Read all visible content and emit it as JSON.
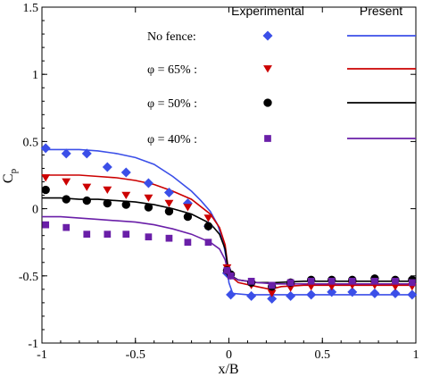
{
  "chart_data": {
    "type": "line",
    "title": "",
    "xlabel": "x/B",
    "ylabel": "C_p",
    "ylabel_main": "C",
    "ylabel_sub": "p",
    "xlim": [
      -1,
      1
    ],
    "ylim": [
      -1,
      1.5
    ],
    "x_ticks": [
      -1,
      -0.5,
      0,
      0.5,
      1
    ],
    "x_tick_labels": [
      "-1",
      "-0.5",
      "0",
      "0.5",
      "1"
    ],
    "y_ticks": [
      -1,
      -0.5,
      0,
      0.5,
      1,
      1.5
    ],
    "y_tick_labels": [
      "-1",
      "-0.5",
      "0",
      "0.5",
      "1",
      "1.5"
    ],
    "grid": false,
    "legend_position": "top-right",
    "legend_headers": {
      "experimental": "Experimental",
      "present": "Present"
    },
    "series": [
      {
        "name": "No fence:",
        "color": "#3b4fe8",
        "marker": "diamond",
        "experimental": {
          "x": [
            -0.98,
            -0.87,
            -0.76,
            -0.65,
            -0.55,
            -0.43,
            -0.32,
            -0.22,
            -0.11,
            -0.01,
            0.01,
            0.12,
            0.23,
            0.33,
            0.44,
            0.55,
            0.66,
            0.78,
            0.89,
            0.98
          ],
          "y": [
            0.45,
            0.41,
            0.41,
            0.31,
            0.27,
            0.19,
            0.12,
            0.04,
            -0.13,
            -0.48,
            -0.64,
            -0.65,
            -0.67,
            -0.65,
            -0.64,
            -0.62,
            -0.62,
            -0.63,
            -0.63,
            -0.64
          ]
        },
        "model": {
          "x": [
            -1.0,
            -0.9,
            -0.8,
            -0.7,
            -0.6,
            -0.5,
            -0.4,
            -0.3,
            -0.2,
            -0.15,
            -0.1,
            -0.06,
            -0.03,
            -0.01,
            0.0,
            0.02,
            0.1,
            0.3,
            0.5,
            0.7,
            1.0
          ],
          "y": [
            0.44,
            0.44,
            0.44,
            0.43,
            0.41,
            0.38,
            0.33,
            0.24,
            0.13,
            0.06,
            -0.02,
            -0.12,
            -0.25,
            -0.4,
            -0.55,
            -0.63,
            -0.64,
            -0.64,
            -0.64,
            -0.64,
            -0.64
          ]
        }
      },
      {
        "name": "φ = 65% :",
        "color": "#cc0000",
        "marker": "triangle-down",
        "experimental": {
          "x": [
            -0.98,
            -0.87,
            -0.76,
            -0.65,
            -0.55,
            -0.43,
            -0.32,
            -0.22,
            -0.11,
            -0.01,
            0.01,
            0.12,
            0.23,
            0.33,
            0.44,
            0.55,
            0.66,
            0.78,
            0.89,
            0.98
          ],
          "y": [
            0.23,
            0.2,
            0.16,
            0.14,
            0.1,
            0.08,
            0.04,
            0.01,
            -0.07,
            -0.44,
            -0.5,
            -0.57,
            -0.63,
            -0.59,
            -0.58,
            -0.58,
            -0.57,
            -0.57,
            -0.58,
            -0.58
          ]
        },
        "model": {
          "x": [
            -1.0,
            -0.9,
            -0.8,
            -0.7,
            -0.6,
            -0.5,
            -0.4,
            -0.3,
            -0.2,
            -0.1,
            -0.05,
            -0.02,
            0.0,
            0.05,
            0.15,
            0.22,
            0.28,
            0.4,
            0.6,
            0.8,
            1.0
          ],
          "y": [
            0.25,
            0.25,
            0.25,
            0.24,
            0.23,
            0.21,
            0.18,
            0.13,
            0.07,
            -0.04,
            -0.14,
            -0.27,
            -0.49,
            -0.55,
            -0.58,
            -0.6,
            -0.58,
            -0.57,
            -0.57,
            -0.57,
            -0.57
          ]
        }
      },
      {
        "name": "φ = 50% :",
        "color": "#000000",
        "marker": "circle",
        "experimental": {
          "x": [
            -0.98,
            -0.87,
            -0.76,
            -0.65,
            -0.55,
            -0.43,
            -0.32,
            -0.22,
            -0.11,
            -0.01,
            0.01,
            0.12,
            0.23,
            0.33,
            0.44,
            0.55,
            0.66,
            0.78,
            0.89,
            0.98
          ],
          "y": [
            0.14,
            0.07,
            0.06,
            0.04,
            0.03,
            0.01,
            -0.02,
            -0.06,
            -0.13,
            -0.46,
            -0.49,
            -0.55,
            -0.58,
            -0.55,
            -0.53,
            -0.53,
            -0.53,
            -0.52,
            -0.53,
            -0.53
          ]
        },
        "model": {
          "x": [
            -1.0,
            -0.9,
            -0.8,
            -0.7,
            -0.6,
            -0.5,
            -0.4,
            -0.3,
            -0.2,
            -0.1,
            -0.05,
            -0.02,
            0.0,
            0.05,
            0.15,
            0.25,
            0.4,
            0.6,
            0.8,
            1.0
          ],
          "y": [
            0.08,
            0.08,
            0.07,
            0.07,
            0.06,
            0.05,
            0.03,
            0.0,
            -0.04,
            -0.11,
            -0.19,
            -0.3,
            -0.49,
            -0.53,
            -0.55,
            -0.55,
            -0.54,
            -0.54,
            -0.54,
            -0.54
          ]
        }
      },
      {
        "name": "φ = 40% :",
        "color": "#6a1fa8",
        "marker": "square",
        "experimental": {
          "x": [
            -0.98,
            -0.87,
            -0.76,
            -0.65,
            -0.55,
            -0.43,
            -0.32,
            -0.22,
            -0.11,
            -0.01,
            0.01,
            0.12,
            0.23,
            0.33,
            0.44,
            0.55,
            0.66,
            0.78,
            0.89,
            0.98
          ],
          "y": [
            -0.12,
            -0.14,
            -0.19,
            -0.19,
            -0.19,
            -0.21,
            -0.22,
            -0.25,
            -0.25,
            -0.46,
            -0.5,
            -0.54,
            -0.57,
            -0.55,
            -0.54,
            -0.54,
            -0.54,
            -0.54,
            -0.54,
            -0.55
          ]
        },
        "model": {
          "x": [
            -1.0,
            -0.9,
            -0.8,
            -0.7,
            -0.6,
            -0.5,
            -0.4,
            -0.3,
            -0.2,
            -0.1,
            -0.05,
            -0.02,
            0.0,
            0.05,
            0.15,
            0.25,
            0.4,
            0.6,
            0.8,
            1.0
          ],
          "y": [
            -0.06,
            -0.06,
            -0.07,
            -0.08,
            -0.09,
            -0.1,
            -0.12,
            -0.15,
            -0.19,
            -0.25,
            -0.3,
            -0.38,
            -0.5,
            -0.53,
            -0.55,
            -0.56,
            -0.56,
            -0.56,
            -0.56,
            -0.56
          ]
        }
      }
    ]
  }
}
